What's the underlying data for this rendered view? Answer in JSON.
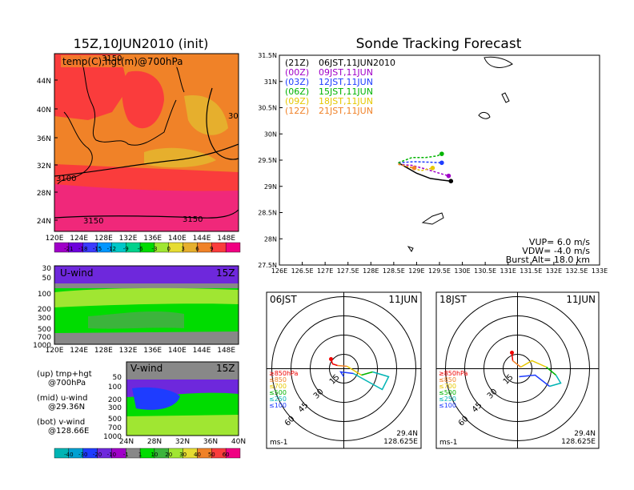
{
  "init_panel": {
    "title": "15Z,10JUN2010 (init)",
    "label": "temp(C),hgt(m)@700hPa",
    "contour_labels": [
      "3150",
      "3100",
      "3150",
      "3150",
      "30"
    ],
    "lat_ticks": [
      "44N",
      "40N",
      "36N",
      "32N",
      "28N",
      "24N"
    ],
    "lon_ticks": [
      "120E",
      "124E",
      "128E",
      "132E",
      "136E",
      "140E",
      "144E",
      "148E"
    ],
    "colorbar": {
      "labels": [
        "-21",
        "-18",
        "-15",
        "-12",
        "-9",
        "-6",
        "-3",
        "0",
        "3",
        "6",
        "9"
      ],
      "colors": [
        "#a000c8",
        "#6e00dc",
        "#3c3cff",
        "#0096ff",
        "#00c8c8",
        "#00d28c",
        "#00dc00",
        "#a0e632",
        "#e6dc32",
        "#e6af2d",
        "#f08228",
        "#fa3c3c",
        "#f00082"
      ]
    }
  },
  "u_panel": {
    "label": "U-wind",
    "time": "15Z",
    "y_ticks": [
      "30",
      "50",
      "100",
      "200",
      "300",
      "500",
      "700",
      "1000"
    ],
    "x_ticks": [
      "120E",
      "124E",
      "128E",
      "132E",
      "136E",
      "140E",
      "144E",
      "148E"
    ]
  },
  "v_panel": {
    "label": "V-wind",
    "time": "15Z",
    "y_ticks": [
      "50",
      "100",
      "200",
      "300",
      "500",
      "700",
      "1000"
    ],
    "x_ticks": [
      "24N",
      "28N",
      "32N",
      "36N",
      "40N"
    ]
  },
  "legend_text": [
    {
      "a": "(up) tmp+hgt",
      "b": "@700hPa"
    },
    {
      "a": "(mid) u-wind",
      "b": "@29.36N"
    },
    {
      "a": "(bot) v-wind",
      "b": "@128.66E"
    }
  ],
  "wind_colorbar": {
    "labels": [
      "-40",
      "-30",
      "-20",
      "-10",
      "-1",
      "1",
      "10",
      "20",
      "30",
      "40",
      "50",
      "60"
    ],
    "colors": [
      "#00b4b4",
      "#00a0d2",
      "#1e3cff",
      "#6e28dc",
      "#a000c8",
      "#888888",
      "#00dc00",
      "#3cb43c",
      "#a0e632",
      "#e6dc32",
      "#f08228",
      "#fa3c3c",
      "#f00082"
    ]
  },
  "tracking": {
    "title": "Sonde Tracking Forecast",
    "entries": [
      {
        "tag": "(21Z)",
        "jst": "06JST,11JUN2010",
        "color": "#000000"
      },
      {
        "tag": "(00Z)",
        "jst": "09JST,11JUN",
        "color": "#a000c8"
      },
      {
        "tag": "(03Z)",
        "jst": "12JST,11JUN",
        "color": "#1e3cff"
      },
      {
        "tag": "(06Z)",
        "jst": "15JST,11JUN",
        "color": "#00b400"
      },
      {
        "tag": "(09Z)",
        "jst": "18JST,11JUN",
        "color": "#e6c800"
      },
      {
        "tag": "(12Z)",
        "jst": "21JST,11JUN",
        "color": "#f08228"
      }
    ],
    "vup": "VUP= 6.0 m/s",
    "vdw": "VDW= -4.0 m/s",
    "burst": "Burst Alt= 18.0 km",
    "lat_ticks": [
      "31.5N",
      "31N",
      "30.5N",
      "30N",
      "29.5N",
      "29N",
      "28.5N",
      "28N",
      "27.5N"
    ],
    "lon_ticks": [
      "126E",
      "126.5E",
      "127E",
      "127.5E",
      "128E",
      "128.5E",
      "129E",
      "129.5E",
      "130E",
      "130.5E",
      "131E",
      "131.5E",
      "132E",
      "132.5E",
      "133E"
    ]
  },
  "chart_data": {
    "type": "line",
    "title": "Sonde Tracking Forecast",
    "xlim": [
      126,
      133
    ],
    "ylim": [
      27.5,
      31.5
    ],
    "series": [
      {
        "name": "(21Z) 06JST,11JUN2010",
        "x": [
          128.6,
          128.8,
          129.0,
          129.3,
          129.55,
          129.75
        ],
        "y": [
          29.45,
          29.35,
          29.25,
          29.15,
          29.12,
          29.1
        ]
      },
      {
        "name": "(00Z) 09JST,11JUN",
        "x": [
          128.6,
          128.9,
          129.2,
          129.5,
          129.7
        ],
        "y": [
          29.42,
          29.4,
          29.33,
          29.25,
          29.2
        ]
      },
      {
        "name": "(03Z) 12JST,11JUN",
        "x": [
          128.6,
          128.95,
          129.3,
          129.55
        ],
        "y": [
          29.45,
          29.47,
          29.46,
          29.45
        ]
      },
      {
        "name": "(06Z) 15JST,11JUN",
        "x": [
          128.6,
          128.9,
          129.2,
          129.45,
          129.55
        ],
        "y": [
          29.45,
          29.55,
          29.55,
          29.58,
          29.62
        ]
      },
      {
        "name": "(09Z) 18JST,11JUN",
        "x": [
          128.6,
          128.9,
          129.1,
          129.35
        ],
        "y": [
          29.43,
          29.35,
          29.3,
          29.35
        ]
      },
      {
        "name": "(12Z) 21JST,11JUN",
        "x": [
          128.6,
          128.8,
          128.95
        ],
        "y": [
          29.42,
          29.38,
          29.35
        ]
      }
    ]
  },
  "hodo1": {
    "time": "06JST",
    "date": "11JUN",
    "ring_labels": [
      "15",
      "30",
      "45",
      "60"
    ],
    "pressure_legend": [
      "≥850hPa",
      "≤850",
      "≤700",
      "≤500",
      "≤250",
      "≤100"
    ],
    "pressure_colors": [
      "#f00000",
      "#f08228",
      "#e6c800",
      "#00b400",
      "#00b4b4",
      "#1e3cff"
    ],
    "units": "ms-1",
    "lat": "29.4N",
    "lon": "128.625E"
  },
  "hodo2": {
    "time": "18JST",
    "date": "11JUN",
    "ring_labels": [
      "15",
      "30",
      "45",
      "60"
    ],
    "pressure_legend": [
      "≥850hPa",
      "≤850",
      "≤700",
      "≤500",
      "≤250",
      "≤100"
    ],
    "pressure_colors": [
      "#f00000",
      "#f08228",
      "#e6c800",
      "#00b400",
      "#00b4b4",
      "#1e3cff"
    ],
    "units": "ms-1",
    "lat": "29.4N",
    "lon": "128.625E"
  }
}
